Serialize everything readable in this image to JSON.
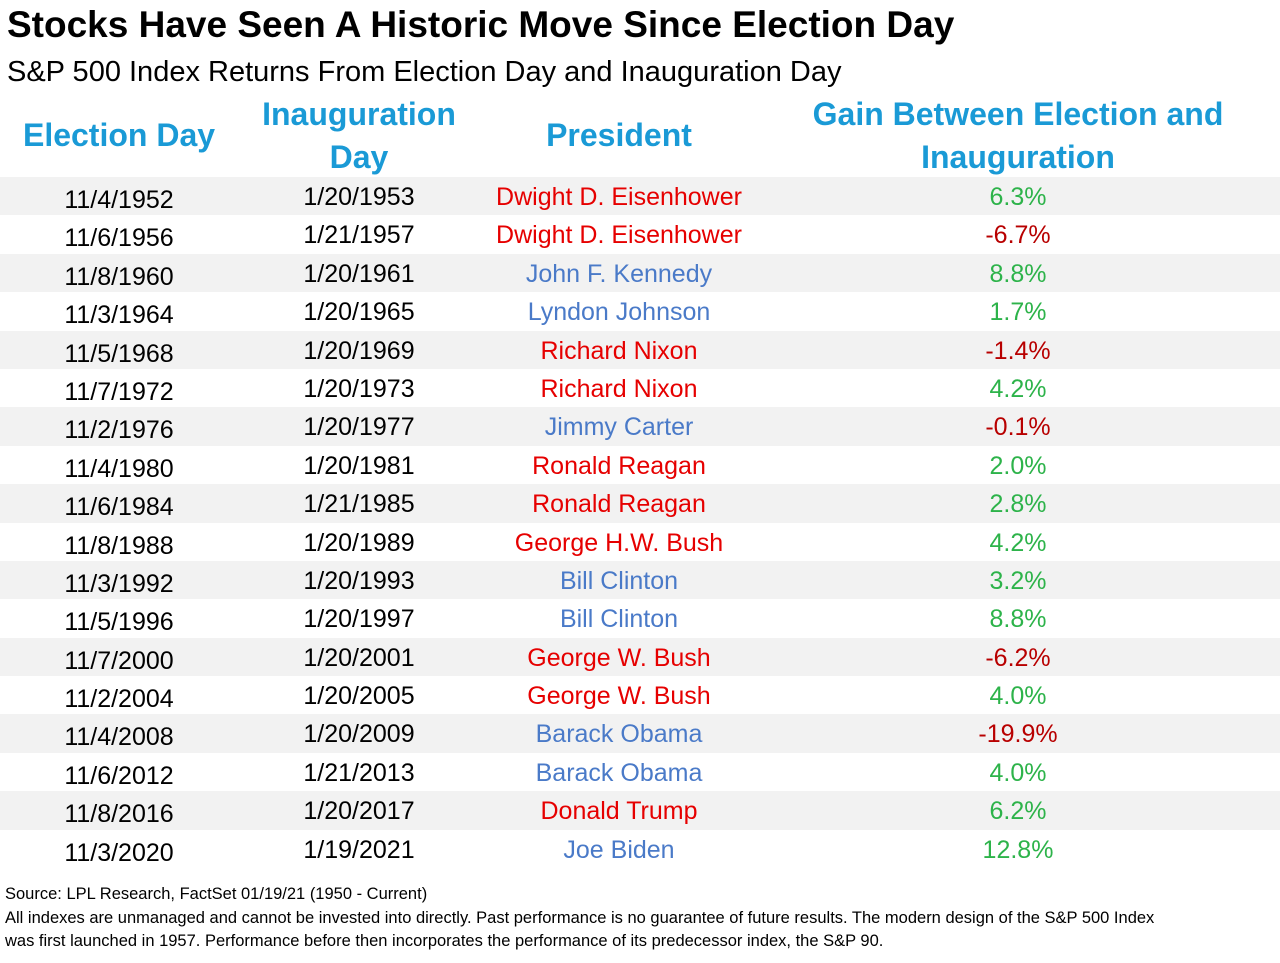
{
  "title": "Stocks Have Seen A Historic Move Since Election Day",
  "subtitle": "S&P 500 Index Returns From Election Day and Inauguration Day",
  "headers": {
    "election": "Election Day",
    "inauguration_1": "Inauguration",
    "inauguration_2": "Day",
    "president": "President",
    "gain_1": "Gain Between Election and",
    "gain_2": "Inauguration"
  },
  "colors": {
    "header": "#1a9ad6",
    "republican": "#e60000",
    "democrat": "#4a7ac8",
    "positive": "#2db34a",
    "negative": "#b80000",
    "row_shade": "#f2f2f2"
  },
  "chart_data": {
    "type": "table",
    "title": "Stocks Have Seen A Historic Move Since Election Day",
    "subtitle": "S&P 500 Index Returns From Election Day and Inauguration Day",
    "columns": [
      "Election Day",
      "Inauguration Day",
      "President",
      "Gain Between Election and Inauguration"
    ],
    "rows": [
      {
        "election": "11/4/1952",
        "inauguration": "1/20/1953",
        "president": "Dwight D. Eisenhower",
        "party": "rep",
        "gain": "6.3%",
        "gain_value": 6.3
      },
      {
        "election": "11/6/1956",
        "inauguration": "1/21/1957",
        "president": "Dwight D. Eisenhower",
        "party": "rep",
        "gain": "-6.7%",
        "gain_value": -6.7
      },
      {
        "election": "11/8/1960",
        "inauguration": "1/20/1961",
        "president": "John F. Kennedy",
        "party": "dem",
        "gain": "8.8%",
        "gain_value": 8.8
      },
      {
        "election": "11/3/1964",
        "inauguration": "1/20/1965",
        "president": "Lyndon Johnson",
        "party": "dem",
        "gain": "1.7%",
        "gain_value": 1.7
      },
      {
        "election": "11/5/1968",
        "inauguration": "1/20/1969",
        "president": "Richard Nixon",
        "party": "rep",
        "gain": "-1.4%",
        "gain_value": -1.4
      },
      {
        "election": "11/7/1972",
        "inauguration": "1/20/1973",
        "president": "Richard Nixon",
        "party": "rep",
        "gain": "4.2%",
        "gain_value": 4.2
      },
      {
        "election": "11/2/1976",
        "inauguration": "1/20/1977",
        "president": "Jimmy Carter",
        "party": "dem",
        "gain": "-0.1%",
        "gain_value": -0.1
      },
      {
        "election": "11/4/1980",
        "inauguration": "1/20/1981",
        "president": "Ronald Reagan",
        "party": "rep",
        "gain": "2.0%",
        "gain_value": 2.0
      },
      {
        "election": "11/6/1984",
        "inauguration": "1/21/1985",
        "president": "Ronald Reagan",
        "party": "rep",
        "gain": "2.8%",
        "gain_value": 2.8
      },
      {
        "election": "11/8/1988",
        "inauguration": "1/20/1989",
        "president": "George H.W. Bush",
        "party": "rep",
        "gain": "4.2%",
        "gain_value": 4.2
      },
      {
        "election": "11/3/1992",
        "inauguration": "1/20/1993",
        "president": "Bill Clinton",
        "party": "dem",
        "gain": "3.2%",
        "gain_value": 3.2
      },
      {
        "election": "11/5/1996",
        "inauguration": "1/20/1997",
        "president": "Bill Clinton",
        "party": "dem",
        "gain": "8.8%",
        "gain_value": 8.8
      },
      {
        "election": "11/7/2000",
        "inauguration": "1/20/2001",
        "president": "George W. Bush",
        "party": "rep",
        "gain": "-6.2%",
        "gain_value": -6.2
      },
      {
        "election": "11/2/2004",
        "inauguration": "1/20/2005",
        "president": "George W. Bush",
        "party": "rep",
        "gain": "4.0%",
        "gain_value": 4.0
      },
      {
        "election": "11/4/2008",
        "inauguration": "1/20/2009",
        "president": "Barack Obama",
        "party": "dem",
        "gain": "-19.9%",
        "gain_value": -19.9
      },
      {
        "election": "11/6/2012",
        "inauguration": "1/21/2013",
        "president": "Barack Obama",
        "party": "dem",
        "gain": "4.0%",
        "gain_value": 4.0
      },
      {
        "election": "11/8/2016",
        "inauguration": "1/20/2017",
        "president": "Donald Trump",
        "party": "rep",
        "gain": "6.2%",
        "gain_value": 6.2
      },
      {
        "election": "11/3/2020",
        "inauguration": "1/19/2021",
        "president": "Joe Biden",
        "party": "dem",
        "gain": "12.8%",
        "gain_value": 12.8
      }
    ]
  },
  "footer": {
    "source": "Source: LPL Research, FactSet 01/19/21 (1950 - Current)",
    "disclaimer_line1": "All indexes are unmanaged and cannot be invested into directly. Past performance is no guarantee of future results. The modern design of the S&P 500 Index",
    "disclaimer_line2": "was first launched in 1957. Performance before then incorporates the performance of its  predecessor index, the S&P 90."
  }
}
